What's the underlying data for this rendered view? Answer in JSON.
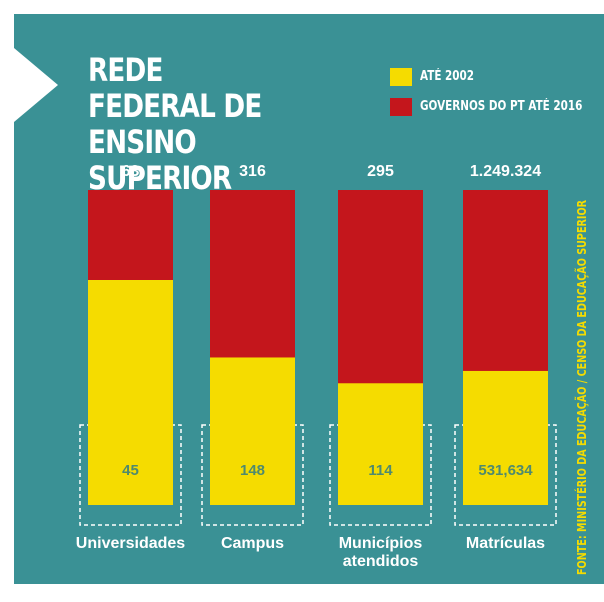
{
  "chart_data": {
    "type": "bar",
    "title": "REDE FEDERAL DE ENSINO SUPERIOR",
    "categories": [
      "Universidades",
      "Campus",
      "Municípios atendidos",
      "Matrículas"
    ],
    "series": [
      {
        "name": "ATÉ 2002",
        "color": "#f5dc00",
        "values": [
          45,
          148,
          114,
          531634
        ],
        "value_labels": [
          "45",
          "148",
          "114",
          "531,634"
        ]
      },
      {
        "name": "GOVERNOS DO PT ATÉ 2016",
        "color": "#c4161c",
        "values": [
          63,
          316,
          295,
          1249324
        ],
        "value_labels": [
          "63",
          "316",
          "295",
          "1.249.324"
        ]
      }
    ],
    "source": "FONTE: MINISTÉRIO DA EDUCAÇÃO / CENSO DA EDUCAÇÃO SUPERIOR"
  }
}
